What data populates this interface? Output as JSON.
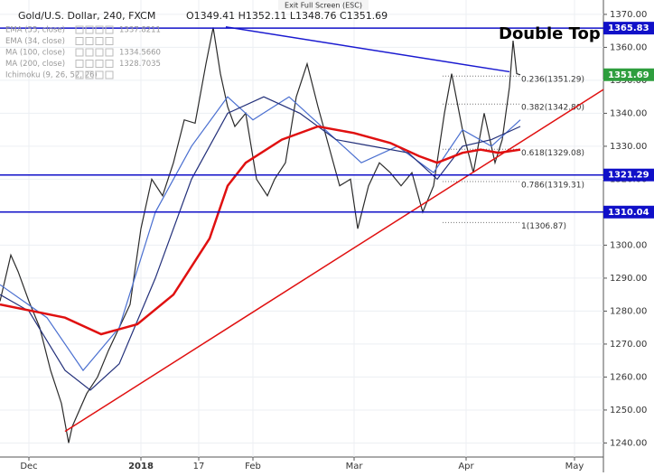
{
  "chart_data": {
    "type": "line",
    "title": "Gold/U.S. Dollar, 240, FXCM",
    "ohlc": "O1349.41 H1352.11 L1348.76 C1351.69",
    "top_bar": "Exit Full Screen (ESC)",
    "annotation": "Double Top",
    "indicators": [
      {
        "name": "EMA (55, close)",
        "value": "1337.8211"
      },
      {
        "name": "EMA (34, close)"
      },
      {
        "name": "MA (100, close)",
        "value": "1334.5660"
      },
      {
        "name": "MA (200, close)",
        "value": "1328.7035"
      },
      {
        "name": "Ichimoku (9, 26, 52, 26)"
      }
    ],
    "xlim": [
      -8,
      159
    ],
    "ylim": [
      1236,
      1373
    ],
    "xticks": [
      {
        "value": 0,
        "label": "Dec"
      },
      {
        "value": 31,
        "label": "2018"
      },
      {
        "value": 47,
        "label": "17"
      },
      {
        "value": 62,
        "label": "Feb"
      },
      {
        "value": 90,
        "label": "Mar"
      },
      {
        "value": 121,
        "label": "Apr"
      },
      {
        "value": 151,
        "label": "May"
      }
    ],
    "yticks": [
      {
        "value": 1240,
        "label": "1240.00"
      },
      {
        "value": 1250,
        "label": "1250.00"
      },
      {
        "value": 1260,
        "label": "1260.00"
      },
      {
        "value": 1270,
        "label": "1270.00"
      },
      {
        "value": 1280,
        "label": "1280.00"
      },
      {
        "value": 1290,
        "label": "1290.00"
      },
      {
        "value": 1300,
        "label": "1300.00"
      },
      {
        "value": 1310,
        "label": "1310.00"
      },
      {
        "value": 1320,
        "label": "1320.00"
      },
      {
        "value": 1330,
        "label": "1330.00"
      },
      {
        "value": 1340,
        "label": "1340.00"
      },
      {
        "value": 1350,
        "label": "1350.00"
      },
      {
        "value": 1360,
        "label": "1360.00"
      },
      {
        "value": 1370,
        "label": "1370.00"
      }
    ],
    "grid": true,
    "series": [
      {
        "color": "#2b2b2b",
        "x": [
          -8,
          -5,
          -3,
          0,
          3,
          6,
          9,
          11,
          12,
          14,
          16,
          19,
          22,
          25,
          28,
          31,
          34,
          37,
          40,
          43,
          46,
          49,
          51,
          53,
          55,
          57,
          60,
          63,
          66,
          68,
          71,
          74,
          77,
          80,
          83,
          86,
          89,
          91,
          94,
          97,
          100,
          103,
          106,
          109,
          112,
          115,
          117,
          120,
          123,
          126,
          129,
          131,
          133,
          134,
          135,
          136
        ],
        "values": [
          1283,
          1297,
          1292,
          1283,
          1275,
          1262,
          1252,
          1240,
          1245,
          1250,
          1255,
          1260,
          1268,
          1275,
          1282,
          1305,
          1320,
          1315,
          1325,
          1338,
          1337,
          1355,
          1366,
          1352,
          1342,
          1336,
          1340,
          1320,
          1315,
          1320,
          1325,
          1345,
          1355,
          1342,
          1330,
          1318,
          1320,
          1305,
          1318,
          1325,
          1322,
          1318,
          1322,
          1310,
          1318,
          1340,
          1352,
          1335,
          1322,
          1340,
          1325,
          1332,
          1348,
          1362,
          1352,
          1351.69
        ]
      },
      {
        "color": "#4a6fd0",
        "x": [
          -8,
          5,
          15,
          25,
          35,
          45,
          55,
          62,
          72,
          82,
          92,
          102,
          112,
          120,
          128,
          136
        ],
        "values": [
          1288,
          1278,
          1262,
          1275,
          1310,
          1330,
          1345,
          1338,
          1345,
          1335,
          1325,
          1330,
          1322,
          1335,
          1330,
          1338
        ]
      },
      {
        "color": "#23307a",
        "x": [
          -8,
          0,
          10,
          17,
          25,
          35,
          45,
          55,
          65,
          75,
          85,
          95,
          105,
          113,
          120,
          128,
          136
        ],
        "values": [
          1285,
          1280,
          1262,
          1256,
          1264,
          1290,
          1320,
          1340,
          1345,
          1340,
          1332,
          1330,
          1328,
          1320,
          1330,
          1332,
          1336
        ]
      },
      {
        "color": "#e01010",
        "x": [
          -8,
          10,
          20,
          30,
          40,
          50,
          55,
          60,
          70,
          80,
          90,
          100,
          108,
          113,
          120,
          125,
          130,
          136
        ],
        "values": [
          1282,
          1278,
          1273,
          1276,
          1285,
          1302,
          1318,
          1325,
          1332,
          1336,
          1334,
          1331,
          1327,
          1325,
          1328,
          1329,
          1328,
          1329
        ]
      }
    ],
    "hlines": [
      {
        "value": 1365.83,
        "color": "#1010c8"
      },
      {
        "value": 1321.29,
        "color": "#1010c8"
      },
      {
        "value": 1310.04,
        "color": "#1010c8"
      }
    ],
    "price_tag": {
      "value": 1351.69,
      "color": "#2e9e3e"
    },
    "trendlines": [
      {
        "x": [
          54.5,
          133
        ],
        "y": [
          1366.2,
          1352.6
        ],
        "color": "#1a1ad0"
      },
      {
        "x": [
          10,
          159
        ],
        "y": [
          1243.5,
          1347.2
        ],
        "color": "#e01010"
      }
    ],
    "fib": [
      {
        "label": "0.236(1351.29)",
        "value": 1351.29
      },
      {
        "label": "0.382(1342.80)",
        "value": 1342.8
      },
      {
        "label": "0.618(1329.08)",
        "value": 1329.08
      },
      {
        "label": "0.786(1319.31)",
        "value": 1319.31
      },
      {
        "label": "1(1306.87)",
        "value": 1306.87
      }
    ]
  }
}
